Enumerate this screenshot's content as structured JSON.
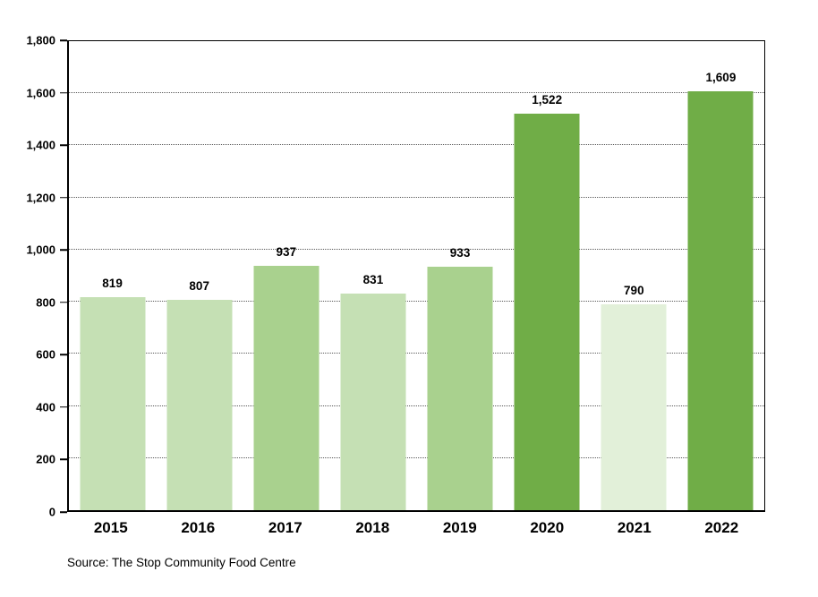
{
  "chart_data": {
    "type": "bar",
    "title": "",
    "categories": [
      "2015",
      "2016",
      "2017",
      "2018",
      "2019",
      "2020",
      "2021",
      "2022"
    ],
    "values": [
      819,
      807,
      937,
      831,
      933,
      1522,
      790,
      1609
    ],
    "data_labels": [
      "819",
      "807",
      "937",
      "831",
      "933",
      "1,522",
      "790",
      "1,609"
    ],
    "bar_colors": [
      "#c5e0b4",
      "#c5e0b4",
      "#a9d18e",
      "#c5e0b4",
      "#a9d18e",
      "#70ad47",
      "#e2f0d9",
      "#70ad47"
    ],
    "xlabel": "",
    "ylabel": "",
    "ylim": [
      0,
      1800
    ],
    "ytick_interval": 200,
    "yticks": [
      0,
      200,
      400,
      600,
      800,
      1000,
      1200,
      1400,
      1600,
      1800
    ],
    "ytick_labels": [
      "0",
      "200",
      "400",
      "600",
      "800",
      "1,000",
      "1,200",
      "1,400",
      "1,600",
      "1,800"
    ],
    "grid": "horizontal-major-dotted",
    "legend_position": "none",
    "source": "Source: The Stop Community Food Centre",
    "colors": {
      "bar_light": "#c5e0b4",
      "bar_medium": "#a9d18e",
      "bar_dark": "#70ad47",
      "bar_very_light": "#e2f0d9",
      "axis_line": "#000000",
      "gridline": "#595959",
      "label_text": "#000000",
      "background": "#ffffff"
    }
  }
}
